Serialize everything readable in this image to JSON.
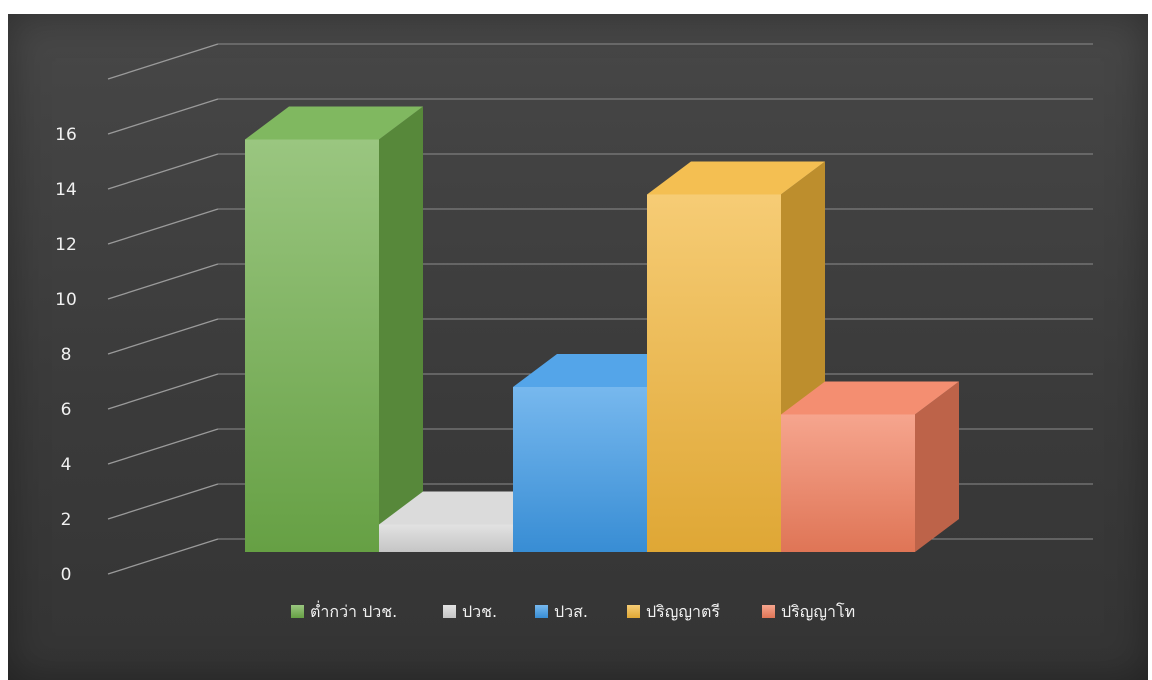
{
  "chart_data": {
    "type": "bar",
    "style": "3d-column",
    "categories": [
      "ต่ำกว่า ปวช.",
      "ปวช.",
      "ปวส.",
      "ปริญญาตรี",
      "ปริญญาโท"
    ],
    "values": [
      15,
      1,
      6,
      13,
      5
    ],
    "colors": [
      "#6fae4a",
      "#d6d6d6",
      "#3d99e6",
      "#f2b63a",
      "#f27f5e"
    ],
    "ylim": [
      0,
      16
    ],
    "yticks": [
      "0",
      "2",
      "4",
      "6",
      "8",
      "10",
      "12",
      "14",
      "16"
    ],
    "title": "",
    "xlabel": "",
    "ylabel": "",
    "grid": true,
    "legend_position": "bottom",
    "background": "#3f3f3f"
  }
}
